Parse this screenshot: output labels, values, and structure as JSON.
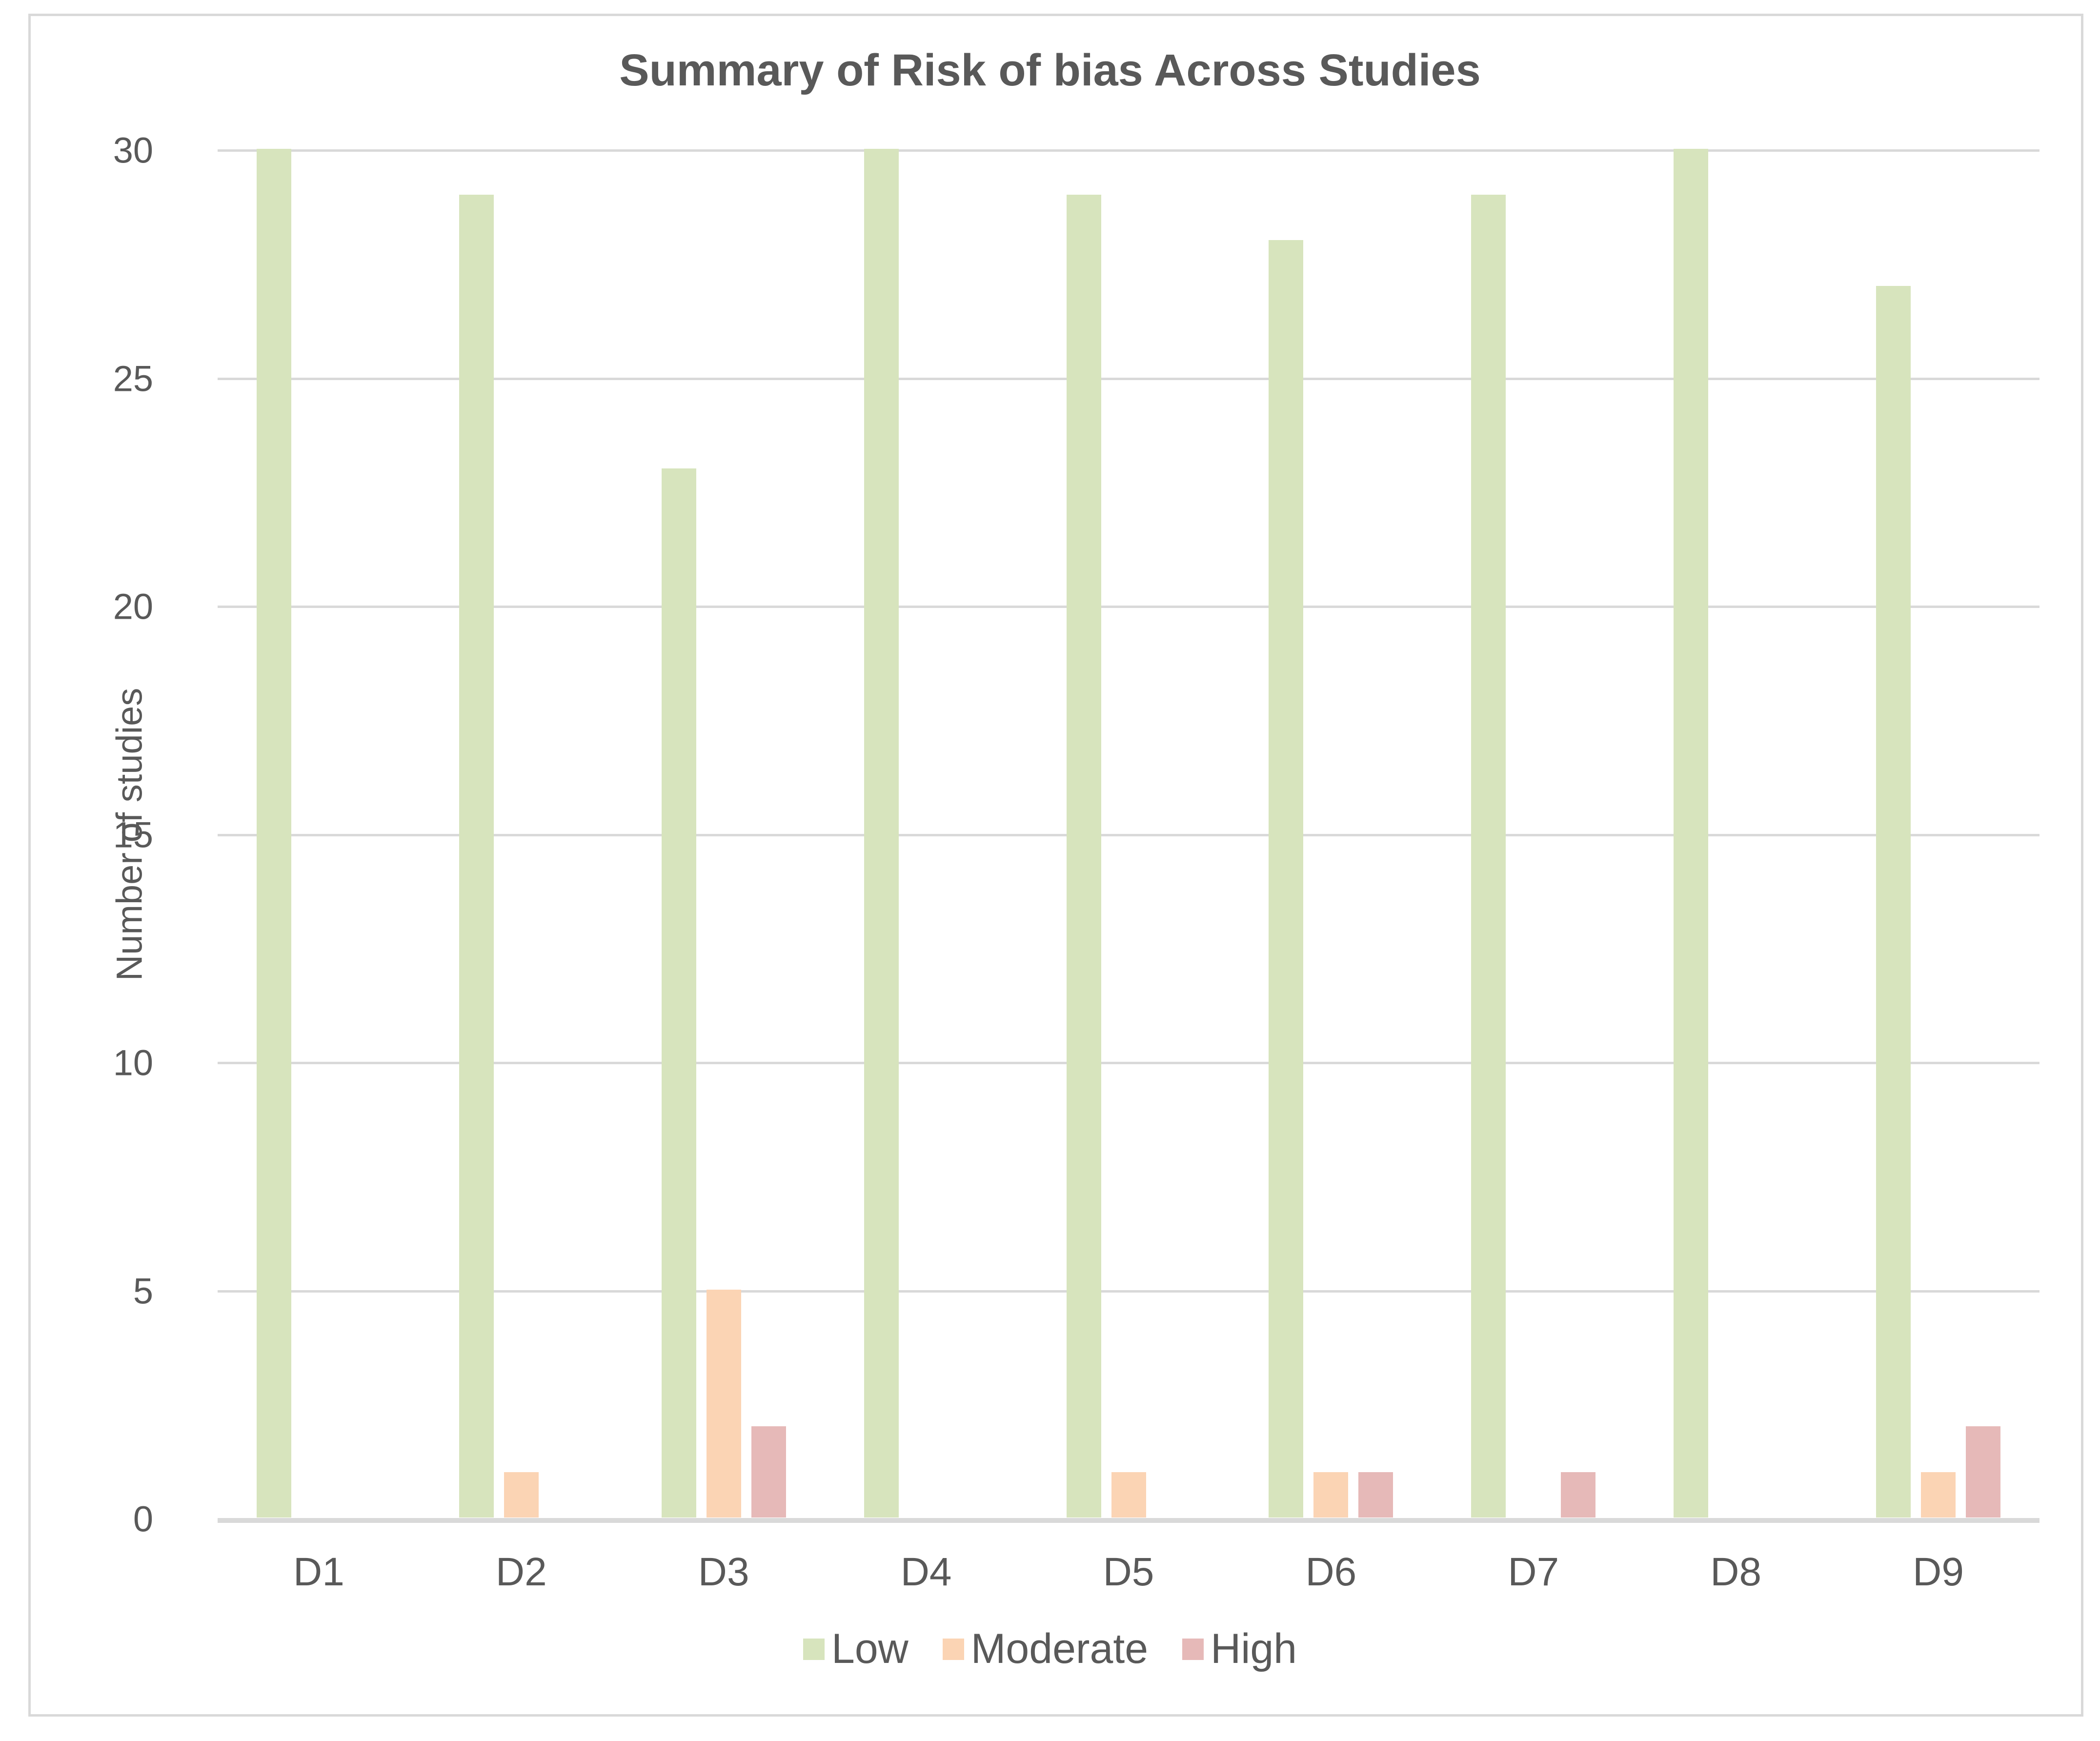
{
  "chart_data": {
    "type": "bar",
    "title": "Summary of Risk of bias Across Studies",
    "xlabel": "",
    "ylabel": "Number of studies",
    "ylim": [
      0,
      30
    ],
    "yticks": [
      0,
      5,
      10,
      15,
      20,
      25,
      30
    ],
    "grid": true,
    "legend_position": "bottom",
    "categories": [
      "D1",
      "D2",
      "D3",
      "D4",
      "D5",
      "D6",
      "D7",
      "D8",
      "D9"
    ],
    "series": [
      {
        "name": "Low",
        "color": "#D7E4BD",
        "values": [
          30,
          29,
          23,
          30,
          29,
          28,
          29,
          30,
          27
        ]
      },
      {
        "name": "Moderate",
        "color": "#FBD4B4",
        "values": [
          0,
          1,
          5,
          0,
          1,
          1,
          0,
          0,
          1
        ]
      },
      {
        "name": "High",
        "color": "#E6B9B8",
        "values": [
          0,
          0,
          2,
          0,
          0,
          1,
          1,
          0,
          2
        ]
      }
    ]
  },
  "title": "Summary of Risk of bias Across Studies",
  "ylabel": "Number of studies",
  "legend": [
    "Low",
    "Moderate",
    "High"
  ]
}
